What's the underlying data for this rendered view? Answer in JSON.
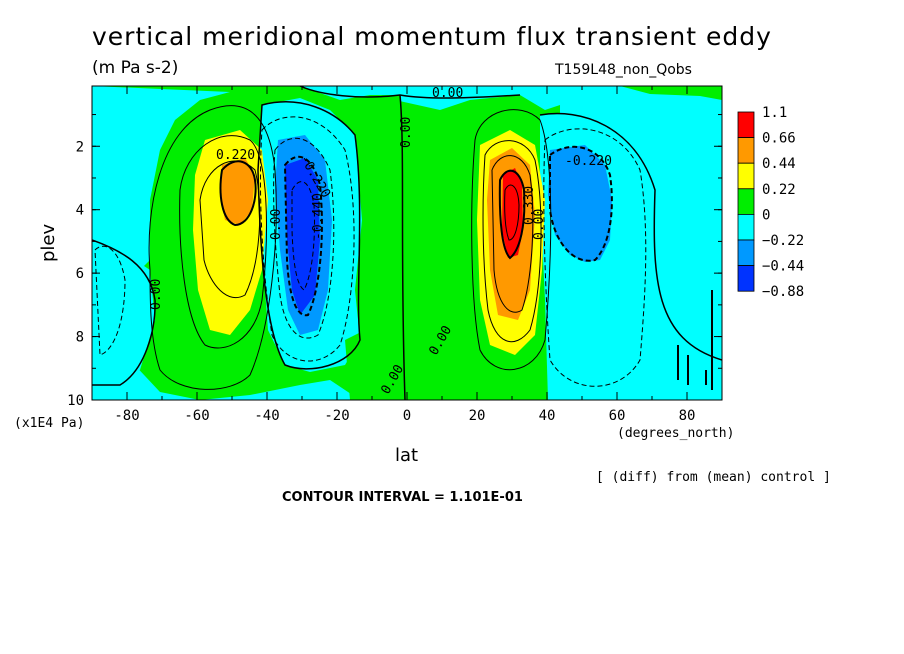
{
  "chart_data": {
    "type": "heatmap",
    "title": "vertical meridional momentum flux transient eddy",
    "units": "(m Pa s-2)",
    "run_label": "T159L48_non_Qobs",
    "xlabel": "lat",
    "x_units": "(degrees_north)",
    "ylabel": "plev",
    "y_units": "(x1E4 Pa)",
    "x_ticks": [
      "-80",
      "-60",
      "-40",
      "-20",
      "0",
      "20",
      "40",
      "60",
      "80"
    ],
    "y_ticks": [
      "2",
      "4",
      "6",
      "8",
      "10"
    ],
    "xlim": [
      -90,
      90
    ],
    "ylim": [
      10,
      0.1
    ],
    "colorbar_levels": [
      "1.1",
      "0.66",
      "0.44",
      "0.22",
      "0",
      "−0.22",
      "−0.44",
      "−0.88"
    ],
    "colorbar_colors": [
      "#ff0000",
      "#ff9900",
      "#ffff00",
      "#00ee00",
      "#00ffff",
      "#0099ff",
      "#0033ff"
    ],
    "contour_labels": [
      "0.220",
      "-0.220",
      "-0.440",
      "0.00",
      "0.00",
      "0.00",
      "-0.220",
      "0.00",
      "0.00",
      "0.00",
      "0.330",
      "0.00"
    ],
    "extrema": [
      {
        "lat": -48,
        "plev": 3.5,
        "value": 0.44
      },
      {
        "lat": -29,
        "plev": 4.5,
        "value": -0.66
      },
      {
        "lat": 29,
        "plev": 4.0,
        "value": 0.9
      },
      {
        "lat": 50,
        "plev": 4.0,
        "value": -0.3
      }
    ],
    "grid": false,
    "legend_position": "right"
  },
  "footer": {
    "note": "[ (diff) from (mean) control ]",
    "contour_interval": "CONTOUR INTERVAL = 1.101E-01"
  }
}
